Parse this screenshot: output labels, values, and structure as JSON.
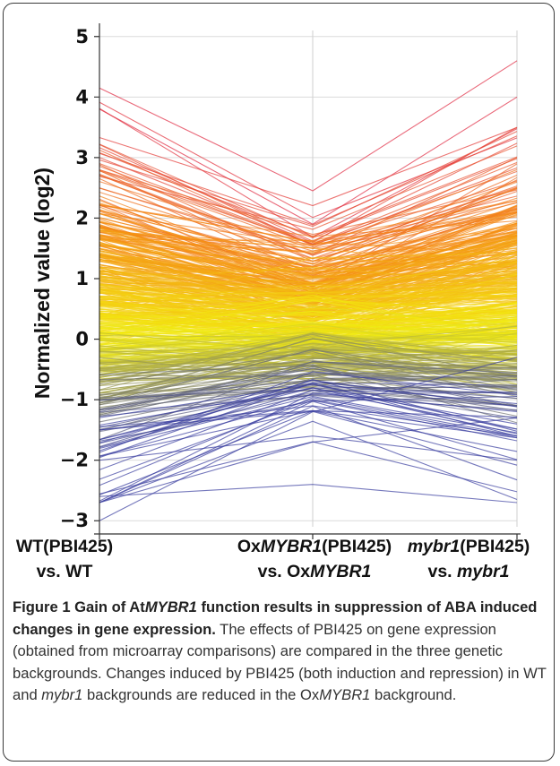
{
  "chart_data": {
    "type": "line",
    "ylabel": "Normalized value (log2)",
    "xlabel": "",
    "ylim": [
      -3.1,
      5.1
    ],
    "yticks": [
      5,
      4,
      3,
      2,
      1,
      0,
      -1,
      -2,
      -3
    ],
    "grid": true,
    "categories": [
      {
        "line1_pre": "WT(PBI425)",
        "line1_it": "",
        "line1_post": "",
        "line2_pre": "vs. WT",
        "line2_it": "",
        "line2_post": ""
      },
      {
        "line1_pre": "Ox",
        "line1_it": "MYBR1",
        "line1_post": "(PBI425)",
        "line2_pre": "vs. Ox",
        "line2_it": "MYBR1",
        "line2_post": ""
      },
      {
        "line1_pre": "",
        "line1_it": "mybr1",
        "line1_post": "(PBI425)",
        "line2_pre": "vs. ",
        "line2_it": "mybr1",
        "line2_post": ""
      }
    ],
    "color_scale": {
      "low": "#3a3fa0",
      "mid": "#f2ec10",
      "high": "#e02840"
    },
    "series_representative": [
      [
        4.15,
        2.45,
        4.6
      ],
      [
        3.8,
        1.9,
        4.0
      ],
      [
        3.0,
        1.6,
        3.5
      ],
      [
        2.5,
        1.4,
        3.0
      ],
      [
        2.0,
        1.2,
        2.5
      ],
      [
        1.5,
        0.9,
        1.8
      ],
      [
        1.0,
        0.5,
        1.3
      ],
      [
        0.5,
        0.2,
        0.6
      ],
      [
        0.0,
        -0.3,
        0.2
      ],
      [
        -0.5,
        -0.5,
        -0.6
      ],
      [
        -1.0,
        -0.8,
        -1.1
      ],
      [
        -1.5,
        -1.1,
        -1.6
      ],
      [
        -2.0,
        -1.6,
        -2.0
      ],
      [
        -2.6,
        -2.4,
        -2.7
      ],
      [
        -3.0,
        -1.2,
        -0.3
      ],
      [
        -2.7,
        -1.7,
        -1.3
      ]
    ]
  },
  "caption": {
    "title_a": "Figure 1 Gain of At",
    "title_it": "MYBR1",
    "title_b": " function results in suppression of ABA induced changes in gene expression.",
    "body_a": " The effects of PBI425 on gene expression (obtained from microarray comparisons) are compared in the three genetic backgrounds. Changes induced by PBI425 (both induction and repression) in WT and ",
    "body_it1": "mybr1",
    "body_b": " backgrounds are reduced in the Ox",
    "body_it2": "MYBR1",
    "body_c": " background."
  }
}
